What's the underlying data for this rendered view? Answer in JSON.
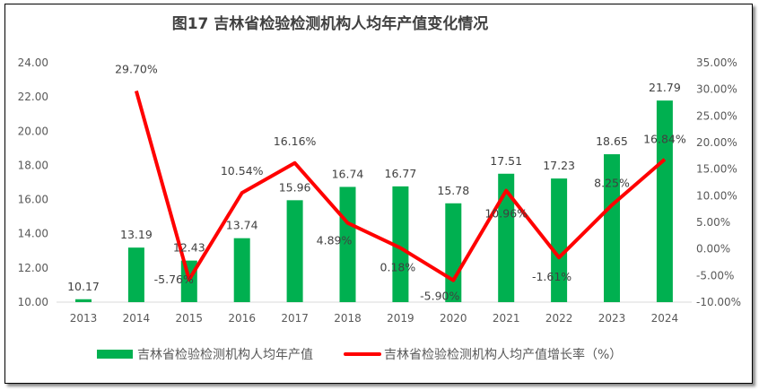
{
  "chart_data": {
    "type": "bar+line",
    "title": "图17 吉林省检验检测机构人均年产值变化情况",
    "categories": [
      "2013",
      "2014",
      "2015",
      "2016",
      "2017",
      "2018",
      "2019",
      "2020",
      "2021",
      "2022",
      "2023",
      "2024"
    ],
    "series": [
      {
        "name": "吉林省检验检测机构人均年产值",
        "type": "bar",
        "axis": "left",
        "color": "#00B050",
        "values": [
          10.17,
          13.19,
          12.43,
          13.74,
          15.96,
          16.74,
          16.77,
          15.78,
          17.51,
          17.23,
          18.65,
          21.79
        ],
        "labels": [
          "10.17",
          "13.19",
          "12.43",
          "13.74",
          "15.96",
          "16.74",
          "16.77",
          "15.78",
          "17.51",
          "17.23",
          "18.65",
          "21.79"
        ]
      },
      {
        "name": "吉林省检验检测机构人均产值增长率（%）",
        "type": "line",
        "axis": "right",
        "color": "#FF0000",
        "values": [
          null,
          29.7,
          -5.76,
          10.54,
          16.16,
          4.89,
          0.18,
          -5.9,
          10.96,
          -1.61,
          8.25,
          16.84
        ],
        "labels": [
          null,
          "29.70%",
          "-5.76%",
          "10.54%",
          "16.16%",
          "4.89%",
          "0.18%",
          "-5.90%",
          "10.96%",
          "-1.61%",
          "8.25%",
          "16.84%"
        ]
      }
    ],
    "left_axis": {
      "ylim": [
        10,
        24
      ],
      "ticks": [
        "10.00",
        "12.00",
        "14.00",
        "16.00",
        "18.00",
        "20.00",
        "22.00",
        "24.00"
      ]
    },
    "right_axis": {
      "ylim": [
        -10,
        35
      ],
      "ticks": [
        "-10.00%",
        "-5.00%",
        "0.00%",
        "5.00%",
        "10.00%",
        "15.00%",
        "20.00%",
        "25.00%",
        "30.00%",
        "35.00%"
      ]
    },
    "grid": false,
    "legend_position": "bottom"
  }
}
